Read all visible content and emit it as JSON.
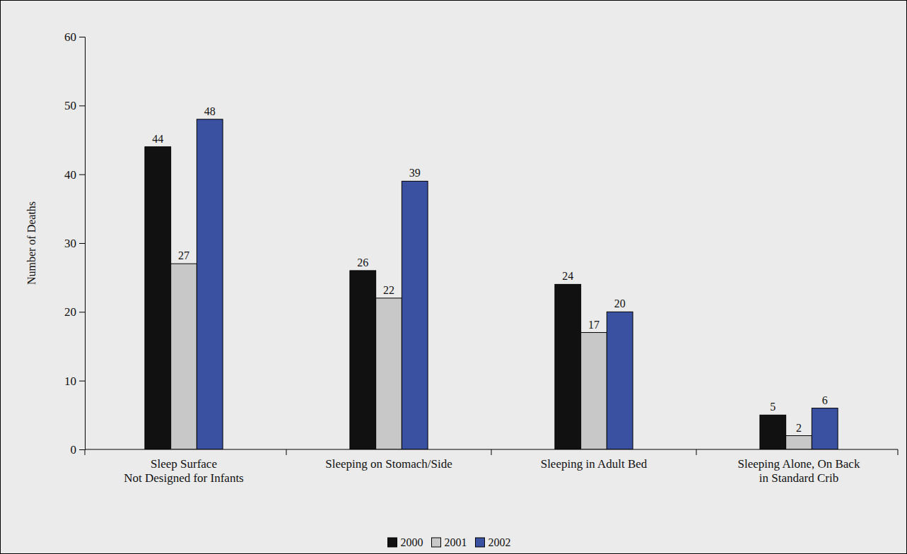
{
  "chart_data": {
    "type": "bar",
    "y_label": "Number of Deaths",
    "categories": [
      "Sleep Surface\nNot Designed for Infants",
      "Sleeping on Stomach/Side",
      "Sleeping in Adult Bed",
      "Sleeping Alone, On Back\nin Standard Crib"
    ],
    "series": [
      {
        "name": "2000",
        "color": "#111111",
        "values": [
          44,
          26,
          24,
          5
        ]
      },
      {
        "name": "2001",
        "color": "#c8c8c8",
        "values": [
          27,
          22,
          17,
          2
        ]
      },
      {
        "name": "2002",
        "color": "#3a50a0",
        "values": [
          48,
          39,
          20,
          6
        ]
      }
    ],
    "ylim": [
      0,
      60
    ],
    "yticks": [
      0,
      10,
      20,
      30,
      40,
      50,
      60
    ],
    "data_labels": true,
    "legend": "bottom",
    "grid": false
  }
}
